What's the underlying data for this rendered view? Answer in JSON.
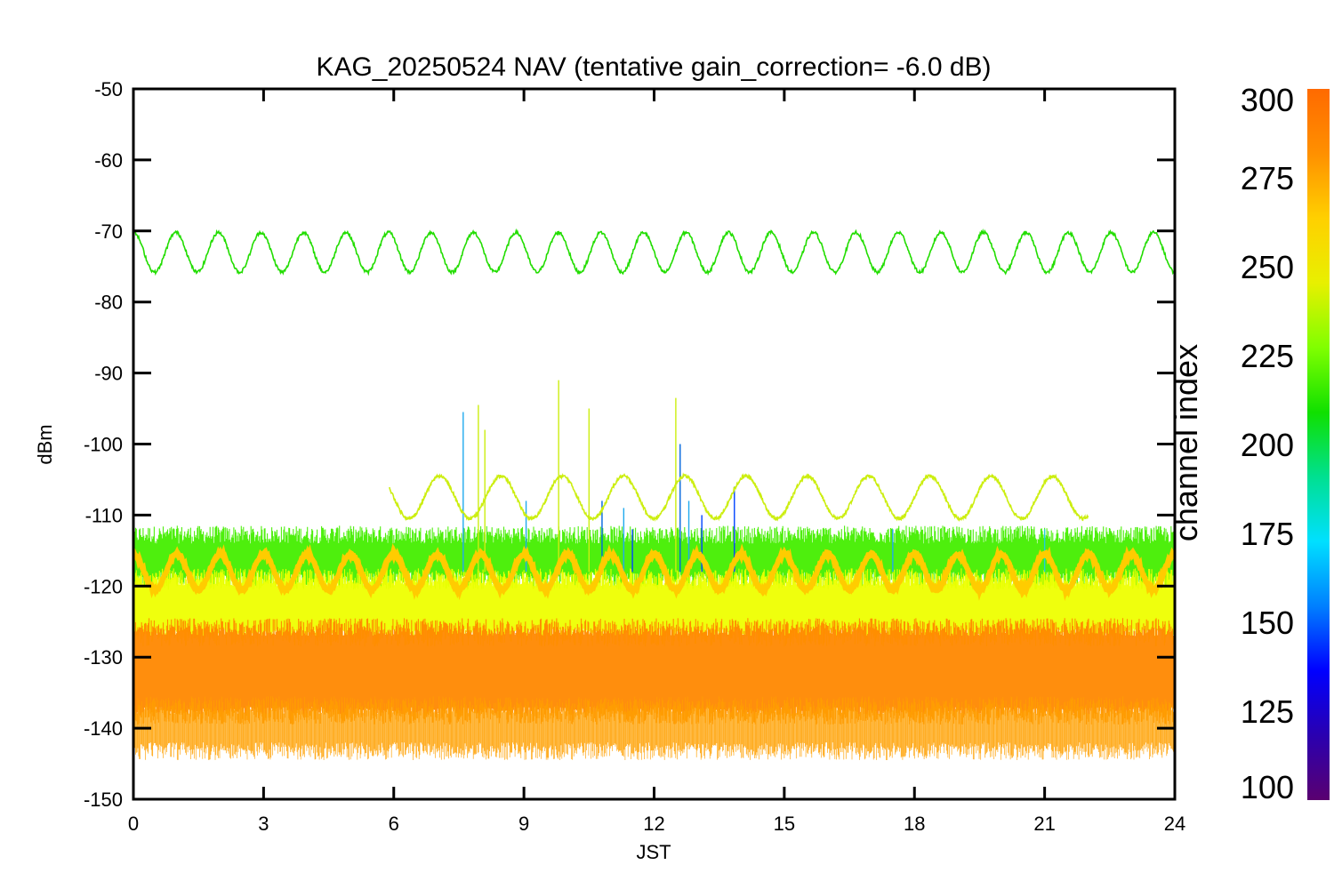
{
  "chart_data": {
    "type": "line",
    "title": "KAG_20250524 NAV (tentative gain_correction= -6.0 dB)",
    "xlabel": "JST",
    "ylabel": "dBm",
    "xlim": [
      0,
      24
    ],
    "ylim": [
      -150,
      -50
    ],
    "x_ticks": [
      "0",
      "3",
      "6",
      "9",
      "12",
      "15",
      "18",
      "21",
      "24"
    ],
    "y_ticks": [
      "-50",
      "-60",
      "-70",
      "-80",
      "-90",
      "-100",
      "-110",
      "-120",
      "-130",
      "-140",
      "-150"
    ],
    "grid": false,
    "colorbar": {
      "label": "channel index",
      "range": [
        100,
        300
      ],
      "ticks": [
        "300",
        "275",
        "250",
        "225",
        "200",
        "175",
        "150",
        "125",
        "100"
      ],
      "colormap": [
        "#5a0070",
        "#2a00b0",
        "#0000ff",
        "#0080ff",
        "#00e0ff",
        "#00e090",
        "#10e000",
        "#80ff00",
        "#e8f000",
        "#ffd000",
        "#ff9000",
        "#ff6a00"
      ]
    },
    "series": [
      {
        "channel": 240,
        "color": "#22dd00",
        "baseline_dbm": -73,
        "amplitude_db": 2.8,
        "cycles": 24.5,
        "x_range": [
          0,
          24
        ]
      },
      {
        "channel": 265,
        "color": "#ccee10",
        "baseline_dbm": -107.5,
        "amplitude_db": 3.0,
        "cycles": 17,
        "x_range": [
          5.9,
          22
        ]
      },
      {
        "channel": 280,
        "color": "#ffcc00",
        "baseline_dbm": -118,
        "amplitude_db": 2.5,
        "cycles": 24,
        "x_range": [
          0,
          24
        ]
      }
    ],
    "noise_bands": [
      {
        "label": "green band",
        "color": "#44ee00",
        "range_dbm": [
          -118,
          -114
        ]
      },
      {
        "label": "yellow band",
        "color": "#eeff00",
        "range_dbm": [
          -126,
          -120
        ]
      },
      {
        "label": "orange band",
        "color": "#ff8800",
        "range_dbm": [
          -137,
          -127
        ]
      },
      {
        "label": "lower fringe",
        "color": "#ffa000",
        "range_dbm": [
          -142,
          -138
        ]
      }
    ],
    "spikes": [
      {
        "x": 7.6,
        "y": -95.5,
        "color": "#20aaee"
      },
      {
        "x": 7.95,
        "y": -94.5,
        "color": "#ccee10"
      },
      {
        "x": 8.1,
        "y": -98,
        "color": "#ccee10"
      },
      {
        "x": 9.05,
        "y": -108,
        "color": "#20aaee"
      },
      {
        "x": 9.8,
        "y": -91,
        "color": "#ccee10"
      },
      {
        "x": 10.5,
        "y": -95,
        "color": "#ccee10"
      },
      {
        "x": 10.8,
        "y": -108,
        "color": "#0066dd"
      },
      {
        "x": 11.3,
        "y": -109,
        "color": "#20aaee"
      },
      {
        "x": 11.5,
        "y": -112,
        "color": "#0044ff"
      },
      {
        "x": 12.5,
        "y": -93.5,
        "color": "#ccee10"
      },
      {
        "x": 12.6,
        "y": -100,
        "color": "#0066dd"
      },
      {
        "x": 12.8,
        "y": -108,
        "color": "#20aaee"
      },
      {
        "x": 13.1,
        "y": -110,
        "color": "#0044ff"
      },
      {
        "x": 13.85,
        "y": -106,
        "color": "#0044ff"
      },
      {
        "x": 17.5,
        "y": -112,
        "color": "#20aaee"
      },
      {
        "x": 21.0,
        "y": -112,
        "color": "#20ccdd"
      }
    ]
  }
}
